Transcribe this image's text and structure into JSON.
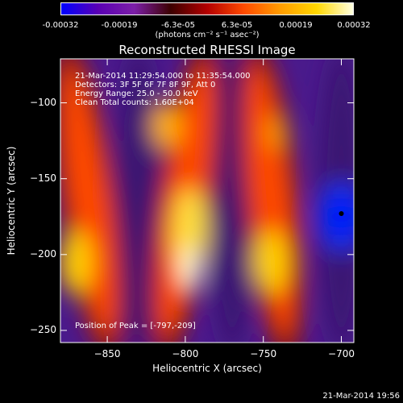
{
  "colorbar": {
    "ticks": [
      "-0.00032",
      "-0.00019",
      "-6.3e-05",
      "6.3e-05",
      "0.00019",
      "0.00032"
    ],
    "units": "(photons cm⁻² s⁻¹ asec⁻²)",
    "colors": [
      "#0000ff",
      "#5a00b4",
      "#7c1fa8",
      "#3c0000",
      "#b40000",
      "#ff4a00",
      "#ff9c00",
      "#ffd700",
      "#ffffe0"
    ]
  },
  "chart_data": {
    "type": "heatmap",
    "title": "Reconstructed RHESSI Image",
    "xlabel": "Heliocentric X (arcsec)",
    "ylabel": "Heliocentric Y (arcsec)",
    "xlim": [
      -880,
      -692
    ],
    "ylim": [
      -258,
      -71
    ],
    "x_ticks": [
      -850,
      -800,
      -750,
      -700
    ],
    "y_ticks": [
      -100,
      -150,
      -200,
      -250
    ],
    "colorscale_range": [
      -0.00032,
      0.00032
    ],
    "peak": {
      "x": -797,
      "y": -209
    },
    "marker": {
      "x": -700,
      "y": -173
    },
    "annotations": [
      "21-Mar-2014 11:29:54.000 to 11:35:54.000",
      "Detectors: 3F 5F 6F 7F 8F 9F, Att 0",
      "Energy Range: 25.0 - 50.0 keV",
      "Clean     Total counts: 1.60E+04"
    ],
    "peak_label": "Position of Peak = [-797,-209]",
    "bright_ridges_x": [
      -860,
      -800,
      -745
    ],
    "dim_troughs_x": [
      -830,
      -770,
      -700
    ]
  },
  "footer": "21-Mar-2014 19:56"
}
